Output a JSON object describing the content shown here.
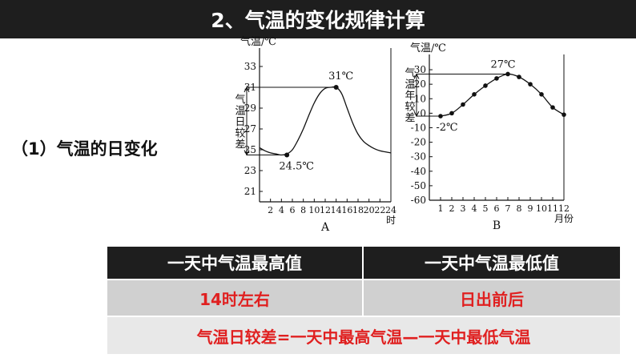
{
  "header": {
    "title": "2、气温的变化规律计算"
  },
  "section": {
    "label": "（1）气温的日变化"
  },
  "chart_data": [
    {
      "type": "line",
      "panel_label": "A",
      "ylabel": "气温/℃",
      "range_label": "气温日较差",
      "xunit": "时",
      "yticks": [
        21,
        23,
        25,
        27,
        29,
        31,
        33
      ],
      "xticks": [
        2,
        4,
        6,
        8,
        10,
        12,
        14,
        16,
        18,
        20,
        22,
        24
      ],
      "ylim": [
        20,
        34
      ],
      "xlim": [
        0,
        24
      ],
      "x": [
        0,
        1,
        2,
        3,
        4,
        5,
        6,
        7,
        8,
        9,
        10,
        11,
        12,
        13,
        14,
        15,
        16,
        17,
        18,
        19,
        20,
        21,
        22,
        23,
        24
      ],
      "y": [
        25.2,
        24.9,
        24.7,
        24.6,
        24.5,
        24.6,
        25.0,
        25.9,
        27.0,
        28.3,
        29.5,
        30.4,
        30.9,
        31.0,
        31.0,
        30.4,
        29.0,
        27.6,
        26.5,
        25.8,
        25.4,
        25.1,
        24.9,
        24.8,
        24.7
      ],
      "markers": [
        {
          "x": 5,
          "y": 24.5,
          "label": "24.5℃"
        },
        {
          "x": 14,
          "y": 31,
          "label": "31℃"
        }
      ]
    },
    {
      "type": "line",
      "panel_label": "B",
      "ylabel": "气温/℃",
      "range_label": "气温年较差",
      "xunit": "月份",
      "yticks": [
        -60,
        -50,
        -40,
        -30,
        -20,
        -10,
        0,
        10,
        20,
        30
      ],
      "xticks": [
        1,
        2,
        3,
        4,
        5,
        6,
        7,
        8,
        9,
        10,
        11,
        12
      ],
      "ylim": [
        -60,
        35
      ],
      "xlim": [
        0,
        12
      ],
      "x": [
        1,
        2,
        3,
        4,
        5,
        6,
        7,
        8,
        9,
        10,
        11,
        12
      ],
      "y": [
        -2,
        0,
        6,
        13,
        19,
        24,
        27,
        25,
        20,
        13,
        4,
        -1
      ],
      "markers": [
        {
          "x": 1,
          "y": -2,
          "label": "-2℃"
        },
        {
          "x": 7,
          "y": 27,
          "label": "27℃"
        }
      ]
    }
  ],
  "table": {
    "headers": [
      "一天中气温最高值",
      "一天中气温最低值"
    ],
    "values": [
      "14时左右",
      "日出前后"
    ],
    "formula": "气温日较差=一天中最高气温—一天中最低气温"
  },
  "colors": {
    "dark": "#1e1e1e",
    "accent": "#e02020",
    "row_bg": "#d0d0d0"
  }
}
